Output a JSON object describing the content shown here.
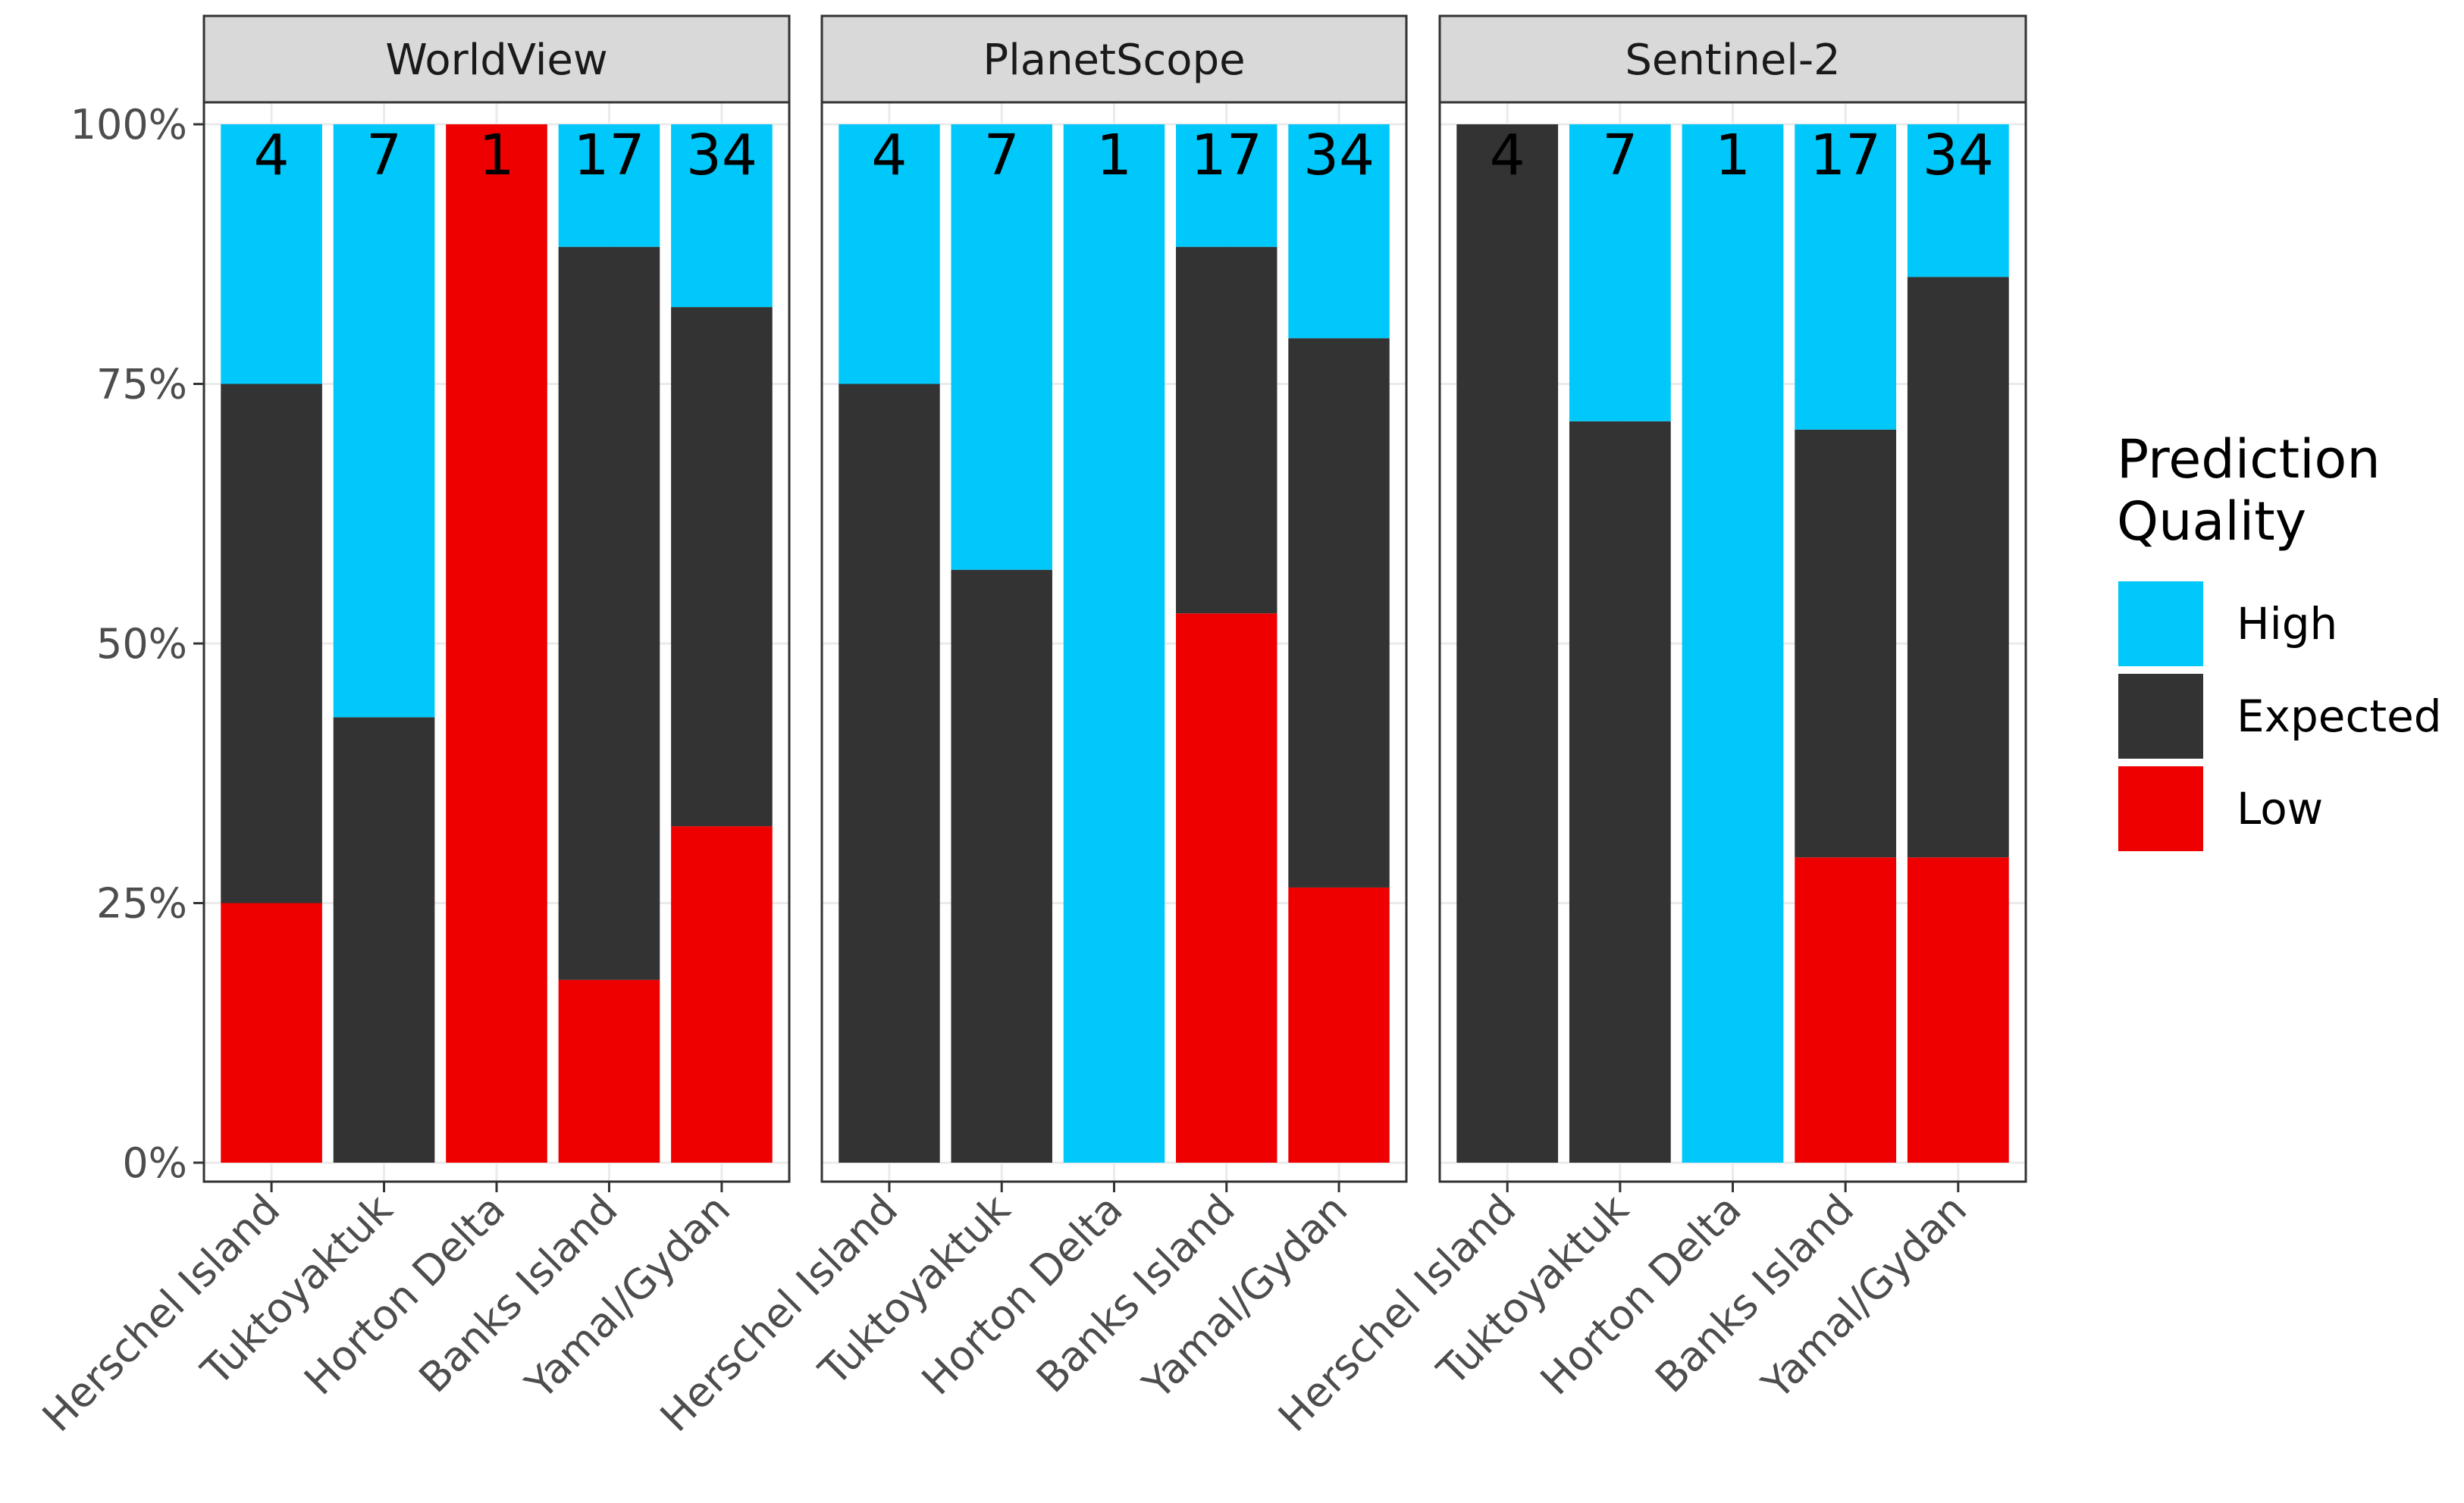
{
  "legend": {
    "title": "Prediction Quality",
    "position": "right"
  },
  "chart_data": [
    {
      "type": "stacked_bar",
      "title": "WorldView",
      "categories": [
        "Herschel Island",
        "Tuktoyaktuk",
        "Horton Delta",
        "Banks Island",
        "Yamal/Gydan"
      ],
      "counts": [
        "4",
        "7",
        "1",
        "17",
        "34"
      ],
      "series": [
        {
          "name": "High",
          "color": "#00c8fa",
          "values": [
            25,
            57.1,
            0,
            11.8,
            17.6
          ]
        },
        {
          "name": "Expected",
          "color": "#333333",
          "values": [
            50,
            42.9,
            0,
            70.6,
            50
          ]
        },
        {
          "name": "Low",
          "color": "#ee0000",
          "values": [
            25,
            0,
            100,
            17.6,
            32.4
          ]
        }
      ],
      "ylim": [
        0,
        100
      ],
      "yticks": [
        {
          "value": 0,
          "label": "0%"
        },
        {
          "value": 25,
          "label": "25%"
        },
        {
          "value": 50,
          "label": "50%"
        },
        {
          "value": 75,
          "label": "75%"
        },
        {
          "value": 100,
          "label": "100%"
        }
      ],
      "grid": true
    },
    {
      "type": "stacked_bar",
      "title": "PlanetScope",
      "categories": [
        "Herschel Island",
        "Tuktoyaktuk",
        "Horton Delta",
        "Banks Island",
        "Yamal/Gydan"
      ],
      "counts": [
        "4",
        "7",
        "1",
        "17",
        "34"
      ],
      "series": [
        {
          "name": "High",
          "color": "#00c8fa",
          "values": [
            25,
            42.9,
            100,
            11.8,
            20.6
          ]
        },
        {
          "name": "Expected",
          "color": "#333333",
          "values": [
            75,
            57.1,
            0,
            35.3,
            52.9
          ]
        },
        {
          "name": "Low",
          "color": "#ee0000",
          "values": [
            0,
            0,
            0,
            52.9,
            26.5
          ]
        }
      ],
      "ylim": [
        0,
        100
      ],
      "yticks": [
        {
          "value": 0,
          "label": "0%"
        },
        {
          "value": 25,
          "label": "25%"
        },
        {
          "value": 50,
          "label": "50%"
        },
        {
          "value": 75,
          "label": "75%"
        },
        {
          "value": 100,
          "label": "100%"
        }
      ],
      "grid": true
    },
    {
      "type": "stacked_bar",
      "title": "Sentinel-2",
      "categories": [
        "Herschel Island",
        "Tuktoyaktuk",
        "Horton Delta",
        "Banks Island",
        "Yamal/Gydan"
      ],
      "counts": [
        "4",
        "7",
        "1",
        "17",
        "34"
      ],
      "series": [
        {
          "name": "High",
          "color": "#00c8fa",
          "values": [
            0,
            28.6,
            100,
            29.4,
            14.7
          ]
        },
        {
          "name": "Expected",
          "color": "#333333",
          "values": [
            100,
            71.4,
            0,
            41.2,
            55.9
          ]
        },
        {
          "name": "Low",
          "color": "#ee0000",
          "values": [
            0,
            0,
            0,
            29.4,
            29.4
          ]
        }
      ],
      "ylim": [
        0,
        100
      ],
      "yticks": [
        {
          "value": 0,
          "label": "0%"
        },
        {
          "value": 25,
          "label": "25%"
        },
        {
          "value": 50,
          "label": "50%"
        },
        {
          "value": 75,
          "label": "75%"
        },
        {
          "value": 100,
          "label": "100%"
        }
      ],
      "grid": true
    }
  ]
}
